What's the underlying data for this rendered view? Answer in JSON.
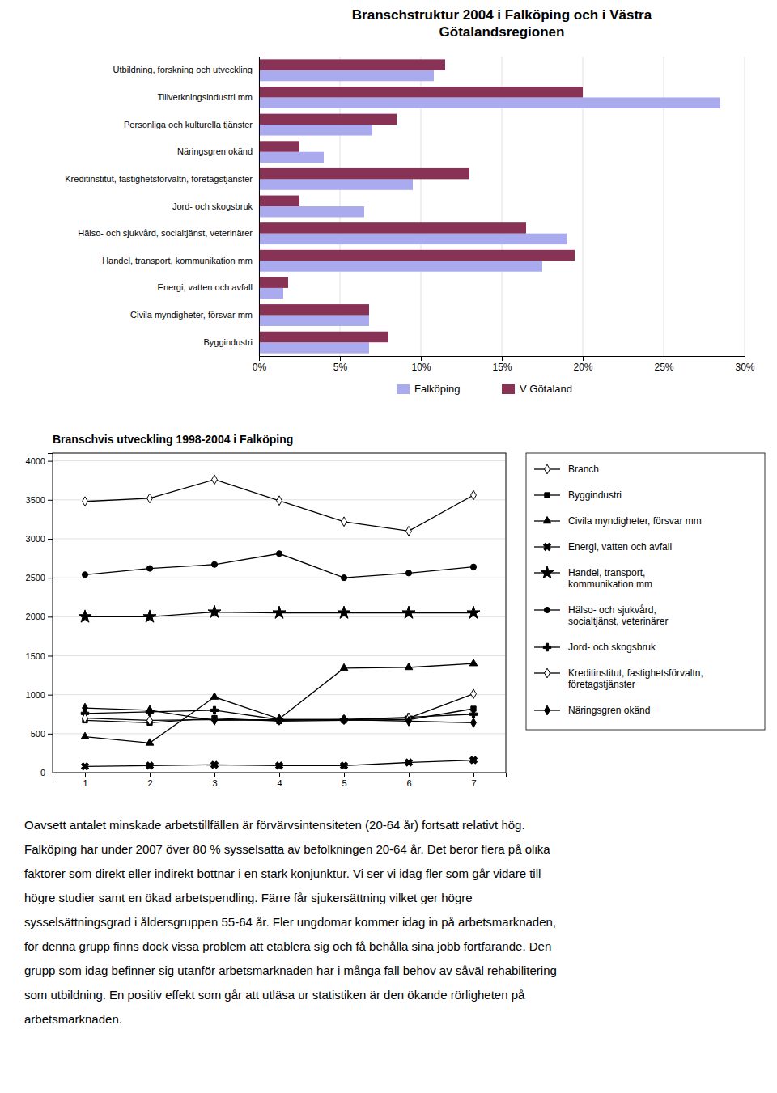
{
  "chart_data": [
    {
      "type": "bar",
      "orientation": "horizontal",
      "title": "Branschstruktur 2004 i Falköping och i Västra\nGötalandsregionen",
      "categories": [
        "Utbildning, forskning och utveckling",
        "Tillverkningsindustri mm",
        "Personliga och kulturella tjänster",
        "Näringsgren okänd",
        "Kreditinstitut, fastighetsförvaltn, företagstjänster",
        "Jord- och skogsbruk",
        "Hälso- och sjukvård, socialtjänst, veterinärer",
        "Handel, transport, kommunikation mm",
        "Energi, vatten och avfall",
        "Civila myndigheter, försvar mm",
        "Byggindustri"
      ],
      "series": [
        {
          "name": "Falköping",
          "color": "#aaaaee",
          "values": [
            0.108,
            0.285,
            0.07,
            0.04,
            0.095,
            0.065,
            0.19,
            0.175,
            0.015,
            0.068,
            0.068
          ]
        },
        {
          "name": "V Götaland",
          "color": "#883355",
          "values": [
            0.115,
            0.2,
            0.085,
            0.025,
            0.13,
            0.025,
            0.165,
            0.195,
            0.018,
            0.068,
            0.08
          ]
        }
      ],
      "xlim": [
        0,
        0.3
      ],
      "xticks": [
        {
          "value": 0,
          "label": "0%"
        },
        {
          "value": 0.05,
          "label": "5%"
        },
        {
          "value": 0.1,
          "label": "10%"
        },
        {
          "value": 0.15,
          "label": "15%"
        },
        {
          "value": 0.2,
          "label": "20%"
        },
        {
          "value": 0.25,
          "label": "25%"
        },
        {
          "value": 0.3,
          "label": "30%"
        }
      ],
      "grid": true,
      "legend": "bottom"
    },
    {
      "type": "line",
      "title": "Branschvis utveckling 1998-2004 i Falköping",
      "x": [
        1,
        2,
        3,
        4,
        5,
        6,
        7
      ],
      "xlim": [
        0.5,
        7.5
      ],
      "xticks": [
        1,
        2,
        3,
        4,
        5,
        6,
        7
      ],
      "ylim": [
        0,
        4100
      ],
      "yticks": [
        0,
        500,
        1000,
        1500,
        2000,
        2500,
        3000,
        3500,
        4000
      ],
      "grid": true,
      "legend": "right",
      "series": [
        {
          "name": "Branch",
          "color": "black",
          "marker": "diamond-open",
          "line_style": "solid",
          "values": [
            3480,
            3520,
            3760,
            3490,
            3220,
            3100,
            3560
          ]
        },
        {
          "name": "Byggindustri",
          "color": "black",
          "marker": "square",
          "line_style": "solid",
          "values": [
            670,
            640,
            700,
            660,
            670,
            680,
            820
          ]
        },
        {
          "name": "Civila myndigheter, försvar mm",
          "color": "black",
          "marker": "triangle",
          "line_style": "solid",
          "values": [
            460,
            380,
            970,
            690,
            1340,
            1350,
            1400
          ]
        },
        {
          "name": "Energi, vatten och avfall",
          "color": "black",
          "marker": "x",
          "line_style": "solid",
          "values": [
            80,
            90,
            100,
            90,
            90,
            130,
            160
          ]
        },
        {
          "name": "Handel, transport,\nkommunikation mm",
          "color": "black",
          "marker": "star",
          "line_style": "solid",
          "values": [
            2000,
            2000,
            2060,
            2050,
            2050,
            2050,
            2050
          ]
        },
        {
          "name": "Hälso- och sjukvård,\nsocialtjänst, veterinärer",
          "color": "black",
          "marker": "circle",
          "line_style": "solid",
          "values": [
            2540,
            2620,
            2670,
            2810,
            2500,
            2560,
            2640
          ]
        },
        {
          "name": "Jord- och skogsbruk",
          "color": "black",
          "marker": "plus",
          "line_style": "solid",
          "values": [
            760,
            780,
            800,
            680,
            680,
            710,
            750
          ]
        },
        {
          "name": "Kreditinstitut, fastighetsförvaltn,\nföretagstjänster",
          "color": "black",
          "marker": "diamond-open",
          "line_style": "solid",
          "values": [
            700,
            670,
            680,
            670,
            680,
            700,
            1010
          ]
        },
        {
          "name": "Näringsgren okänd",
          "color": "black",
          "marker": "diamond",
          "line_style": "solid",
          "values": [
            830,
            800,
            670,
            680,
            680,
            660,
            640
          ]
        }
      ]
    }
  ],
  "text": [
    "Oavsett antalet minskade arbetstillfällen är förvärvsintensiteten (20-64 år) fortsatt relativt hög.",
    "Falköping har under 2007 över 80 % sysselsatta av befolkningen 20-64 år. Det beror flera på olika",
    "faktorer som direkt eller indirekt bottnar i en stark konjunktur. Vi ser vi idag fler som går vidare till",
    "högre studier samt en ökad arbetspendling. Färre får sjukersättning vilket ger högre",
    "sysselsättningsgrad i åldersgruppen 55-64 år. Fler ungdomar kommer idag in på arbetsmarknaden,",
    "för denna grupp finns dock vissa problem att etablera sig och få behålla sina jobb fortfarande. Den",
    "grupp som idag befinner sig utanför arbetsmarknaden har i många fall behov av såväl rehabilitering",
    "som utbildning. En positiv effekt som går att utläsa ur statistiken är den ökande rörligheten på",
    "arbetsmarknaden."
  ]
}
